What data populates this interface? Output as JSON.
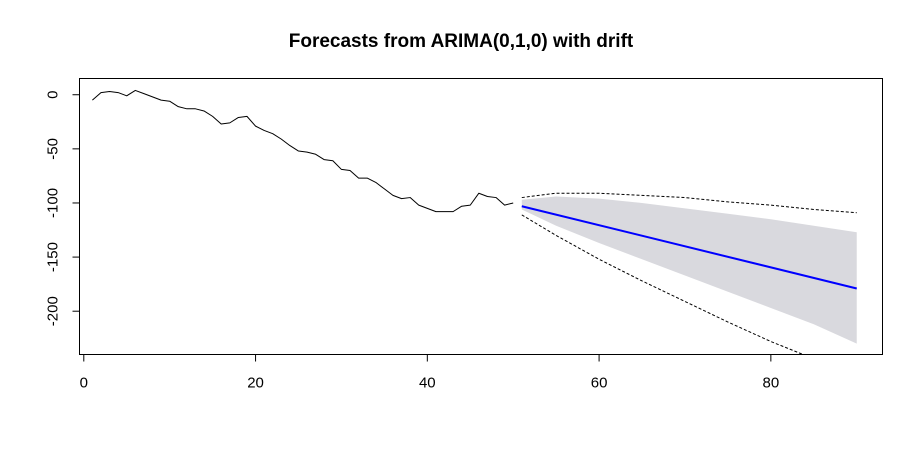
{
  "chart_data": {
    "type": "line",
    "title": "Forecasts from ARIMA(0,1,0) with drift",
    "xlabel": "",
    "ylabel": "",
    "xlim": [
      -0.5,
      93
    ],
    "ylim": [
      -240,
      15
    ],
    "x_ticks": [
      0,
      20,
      40,
      60,
      80
    ],
    "y_ticks": [
      0,
      -50,
      -100,
      -150,
      -200
    ],
    "grid": false,
    "colors": {
      "observed": "#000000",
      "forecast": "#0000ff",
      "band_80": "#d9d9de",
      "band_95_line": "#000000"
    },
    "series": [
      {
        "role": "observed",
        "x": [
          1,
          2,
          3,
          4,
          5,
          6,
          7,
          8,
          9,
          10,
          11,
          12,
          13,
          14,
          15,
          16,
          17,
          18,
          19,
          20,
          21,
          22,
          23,
          24,
          25,
          26,
          27,
          28,
          29,
          30,
          31,
          32,
          33,
          34,
          35,
          36,
          37,
          38,
          39,
          40,
          41,
          42,
          43,
          44,
          45,
          46,
          47,
          48,
          49,
          50
        ],
        "y": [
          -5,
          2,
          3,
          2,
          -1,
          4,
          1,
          -2,
          -5,
          -6,
          -11,
          -13,
          -13,
          -15,
          -20,
          -27,
          -26,
          -21,
          -20,
          -29,
          -33,
          -36,
          -41,
          -47,
          -52,
          -53,
          -55,
          -60,
          -61,
          -69,
          -70,
          -77,
          -77,
          -81,
          -87,
          -93,
          -96,
          -95,
          -102,
          -105,
          -108,
          -108,
          -108,
          -103,
          -102,
          -91,
          -94,
          -95,
          -102,
          -100
        ]
      },
      {
        "role": "forecast",
        "x": [
          51,
          90
        ],
        "y": [
          -103,
          -179
        ]
      }
    ],
    "bands": [
      {
        "level": "80",
        "x": [
          51,
          55,
          60,
          65,
          70,
          75,
          80,
          85,
          90
        ],
        "lower": [
          -106,
          -121,
          -137,
          -152,
          -167,
          -182,
          -197,
          -212,
          -230
        ],
        "upper": [
          -97,
          -94,
          -96,
          -100,
          -105,
          -110,
          -115,
          -121,
          -127
        ]
      },
      {
        "level": "95",
        "x": [
          51,
          55,
          60,
          65,
          70,
          75,
          80,
          85,
          90
        ],
        "lower": [
          -111,
          -130,
          -152,
          -172,
          -191,
          -210,
          -228,
          -244,
          -262
        ],
        "upper": [
          -95,
          -91,
          -91,
          -93,
          -95,
          -99,
          -102,
          -106,
          -109
        ]
      }
    ]
  }
}
